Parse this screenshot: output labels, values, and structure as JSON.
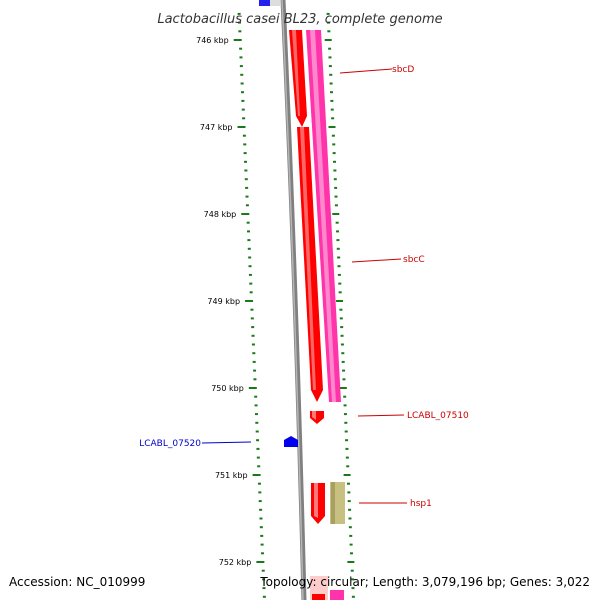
{
  "title": "Lactobacillus casei BL23, complete genome",
  "footer": {
    "accession": "Accession: NC_010999",
    "summary": "Topology: circular; Length: 3,079,196 bp; Genes: 3,022"
  },
  "colors": {
    "tick": "#1a7a1a",
    "backbone": "#808080",
    "forward_gene": "#ff0000",
    "forward_track": "#ff33aa",
    "reverse_gene": "#0000ee",
    "feature_khaki": "#c8c080",
    "label_forward": "#cc0000",
    "label_reverse": "#0000cc"
  },
  "scale": {
    "ticks": [
      {
        "kbp": 746,
        "label": "746 kbp"
      },
      {
        "kbp": 747,
        "label": "747 kbp"
      },
      {
        "kbp": 748,
        "label": "748 kbp"
      },
      {
        "kbp": 749,
        "label": "749 kbp"
      },
      {
        "kbp": 750,
        "label": "750 kbp"
      },
      {
        "kbp": 751,
        "label": "751 kbp"
      },
      {
        "kbp": 752,
        "label": "752 kbp"
      }
    ]
  },
  "genes": [
    {
      "name": "sbcD",
      "strand": "forward",
      "label_color": "label_forward"
    },
    {
      "name": "sbcC",
      "strand": "forward",
      "label_color": "label_forward"
    },
    {
      "name": "LCABL_07510",
      "strand": "forward",
      "label_color": "label_forward"
    },
    {
      "name": "LCABL_07520",
      "strand": "reverse",
      "label_color": "label_reverse"
    },
    {
      "name": "hsp1",
      "strand": "forward",
      "label_color": "label_forward"
    }
  ]
}
